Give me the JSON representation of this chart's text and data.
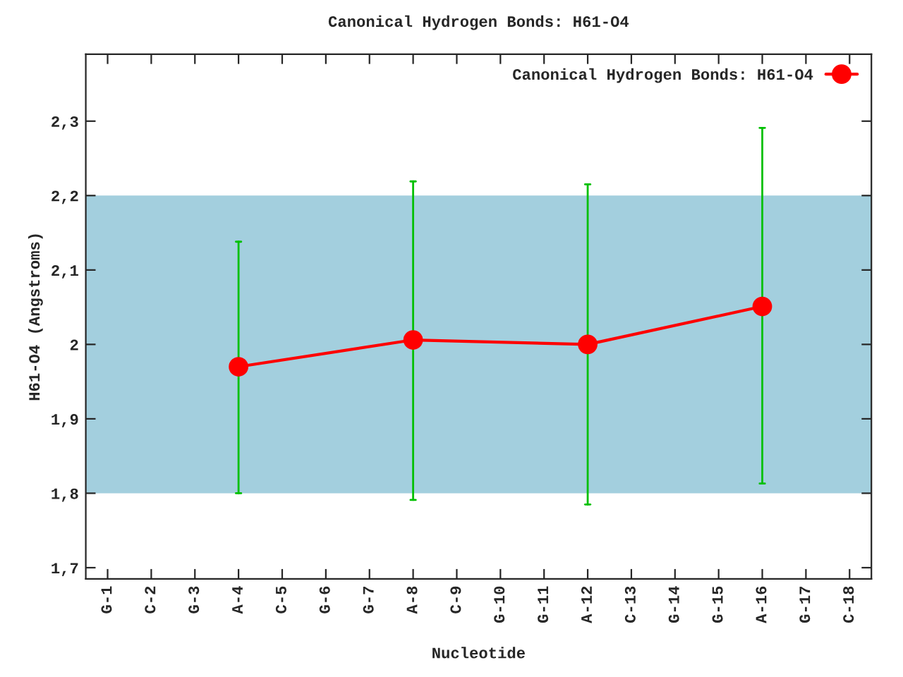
{
  "chart_data": {
    "type": "line",
    "title": "Canonical Hydrogen Bonds: H61-O4",
    "xlabel": "Nucleotide",
    "ylabel": "H61-O4 (Angstroms)",
    "categories": [
      "G-1",
      "C-2",
      "G-3",
      "A-4",
      "C-5",
      "G-6",
      "G-7",
      "A-8",
      "C-9",
      "G-10",
      "G-11",
      "A-12",
      "C-13",
      "G-14",
      "G-15",
      "A-16",
      "G-17",
      "C-18"
    ],
    "series": [
      {
        "name": "Canonical Hydrogen Bonds: H61-O4",
        "color": "#ff0000",
        "values": [
          null,
          null,
          null,
          1.97,
          null,
          null,
          null,
          2.006,
          null,
          null,
          null,
          2.0,
          null,
          null,
          null,
          2.051,
          null,
          null
        ],
        "errors": [
          null,
          null,
          null,
          [
            1.8,
            2.138
          ],
          null,
          null,
          null,
          [
            1.791,
            2.219
          ],
          null,
          null,
          null,
          [
            1.785,
            2.215
          ],
          null,
          null,
          null,
          [
            1.813,
            2.291
          ],
          null,
          null
        ]
      }
    ],
    "ylim": [
      1.685,
      2.39
    ],
    "yticks": [
      {
        "value": 1.7,
        "label": "1,7"
      },
      {
        "value": 1.8,
        "label": "1,8"
      },
      {
        "value": 1.9,
        "label": "1,9"
      },
      2,
      {
        "value": 2.1,
        "label": "2,1"
      },
      {
        "value": 2.2,
        "label": "2,2"
      },
      {
        "value": 2.3,
        "label": "2,3"
      }
    ],
    "bands": [
      {
        "axis": "y",
        "from": 1.8,
        "to": 2.2,
        "color": "#a3cfde"
      }
    ],
    "marker": "circle",
    "line_style": "solid",
    "legend": "top right",
    "grid": false
  }
}
